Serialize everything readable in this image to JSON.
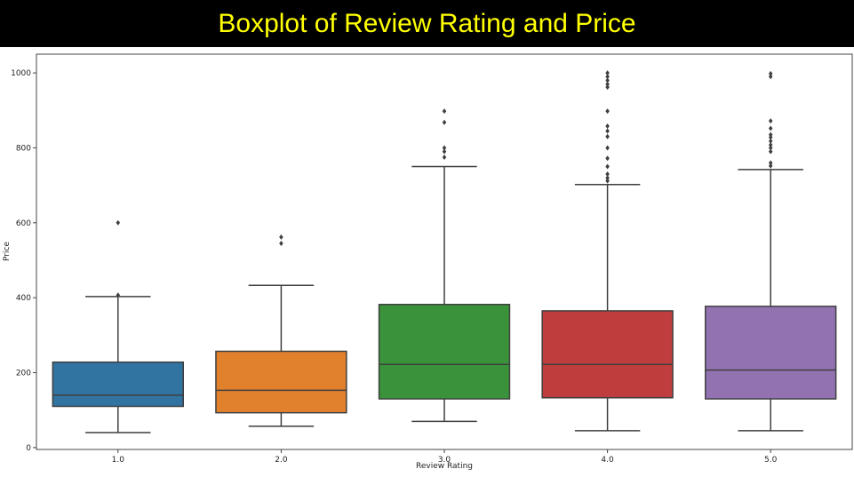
{
  "header": {
    "title": "Boxplot of Review Rating and Price"
  },
  "chart_data": {
    "type": "boxplot",
    "xlabel": "Review Rating",
    "ylabel": "Price",
    "ylim": [
      -5,
      1050
    ],
    "yticks": [
      0,
      200,
      400,
      600,
      800,
      1000
    ],
    "grid": false,
    "categories": [
      "1.0",
      "2.0",
      "3.0",
      "4.0",
      "5.0"
    ],
    "boxes": [
      {
        "category": "1.0",
        "color": "#3274a1",
        "whisker_low": 40,
        "q1": 110,
        "median": 140,
        "q3": 228,
        "whisker_high": 403,
        "outliers": [
          407,
          600
        ]
      },
      {
        "category": "2.0",
        "color": "#e1812c",
        "whisker_low": 57,
        "q1": 93,
        "median": 153,
        "q3": 257,
        "whisker_high": 433,
        "outliers": [
          545,
          562
        ]
      },
      {
        "category": "3.0",
        "color": "#3a923a",
        "whisker_low": 70,
        "q1": 130,
        "median": 222,
        "q3": 382,
        "whisker_high": 750,
        "outliers": [
          775,
          790,
          800,
          868,
          898
        ]
      },
      {
        "category": "4.0",
        "color": "#c03d3e",
        "whisker_low": 45,
        "q1": 133,
        "median": 222,
        "q3": 365,
        "whisker_high": 702,
        "outliers": [
          712,
          720,
          730,
          750,
          772,
          800,
          830,
          845,
          858,
          898,
          962,
          970,
          980,
          990,
          1000
        ]
      },
      {
        "category": "5.0",
        "color": "#9372b2",
        "whisker_low": 45,
        "q1": 130,
        "median": 207,
        "q3": 377,
        "whisker_high": 742,
        "outliers": [
          752,
          760,
          790,
          800,
          808,
          818,
          828,
          835,
          852,
          872,
          990,
          998
        ]
      }
    ]
  }
}
